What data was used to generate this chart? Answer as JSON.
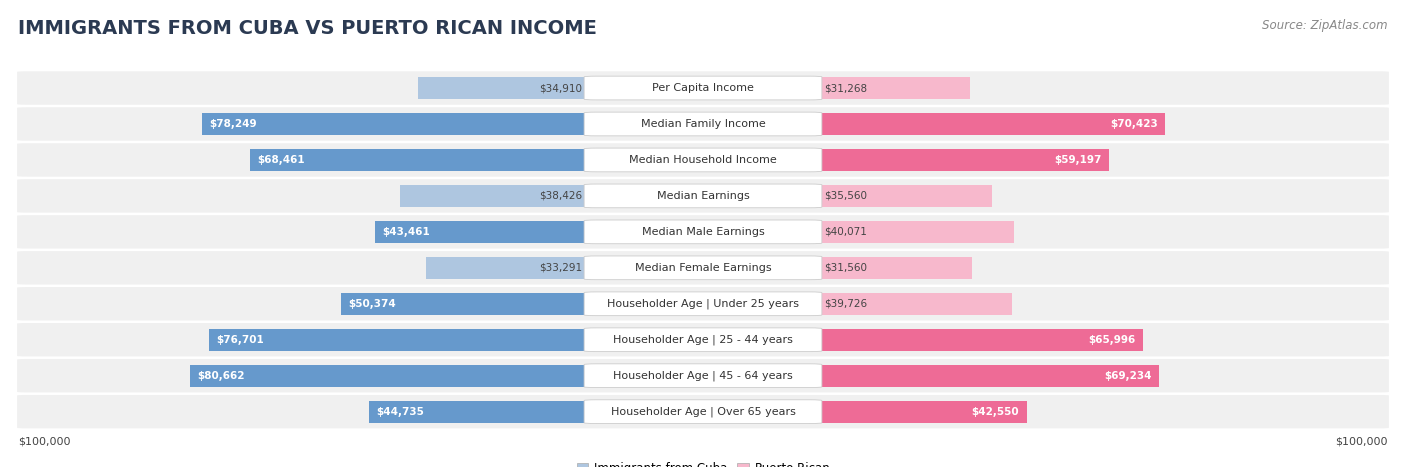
{
  "title": "IMMIGRANTS FROM CUBA VS PUERTO RICAN INCOME",
  "source": "Source: ZipAtlas.com",
  "categories": [
    "Per Capita Income",
    "Median Family Income",
    "Median Household Income",
    "Median Earnings",
    "Median Male Earnings",
    "Median Female Earnings",
    "Householder Age | Under 25 years",
    "Householder Age | 25 - 44 years",
    "Householder Age | 45 - 64 years",
    "Householder Age | Over 65 years"
  ],
  "cuba_values": [
    34910,
    78249,
    68461,
    38426,
    43461,
    33291,
    50374,
    76701,
    80662,
    44735
  ],
  "puerto_rico_values": [
    31268,
    70423,
    59197,
    35560,
    40071,
    31560,
    39726,
    65996,
    69234,
    42550
  ],
  "cuba_color_light": "#aec6e0",
  "cuba_color_dark": "#6699cc",
  "puerto_rico_color_light": "#f7b8cc",
  "puerto_rico_color_dark": "#ee6b96",
  "background_color": "#ffffff",
  "row_bg_color": "#f0f0f0",
  "max_value": 100000,
  "legend_cuba": "Immigrants from Cuba",
  "legend_puerto_rico": "Puerto Rican",
  "title_fontsize": 14,
  "source_fontsize": 8.5,
  "label_fontsize": 8,
  "value_fontsize": 7.5,
  "inside_value_threshold": 0.42
}
